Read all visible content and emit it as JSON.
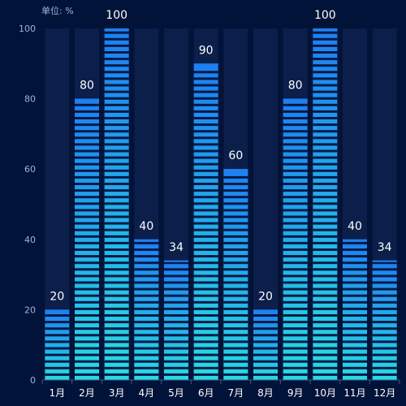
{
  "chart_data": {
    "type": "bar",
    "unit_label": "单位: %",
    "categories": [
      "1月",
      "2月",
      "3月",
      "4月",
      "5月",
      "6月",
      "7月",
      "8月",
      "9月",
      "10月",
      "11月",
      "12月"
    ],
    "values": [
      20,
      80,
      100,
      40,
      34,
      90,
      60,
      20,
      80,
      100,
      40,
      34
    ],
    "ylim": [
      0,
      100
    ],
    "yticks": [
      0,
      20,
      40,
      60,
      80,
      100
    ],
    "grid": false,
    "legend": "none"
  },
  "colors": {
    "background": "#021339",
    "bar_track": "#0b1f4a",
    "bar_top": "#1e7ff2",
    "bar_bottom": "#28dbe3",
    "segment_gap": "#061a45",
    "axis_label": "#9fb3d9",
    "value_label": "#ffffff",
    "axis_line": "#3a5a8c"
  }
}
